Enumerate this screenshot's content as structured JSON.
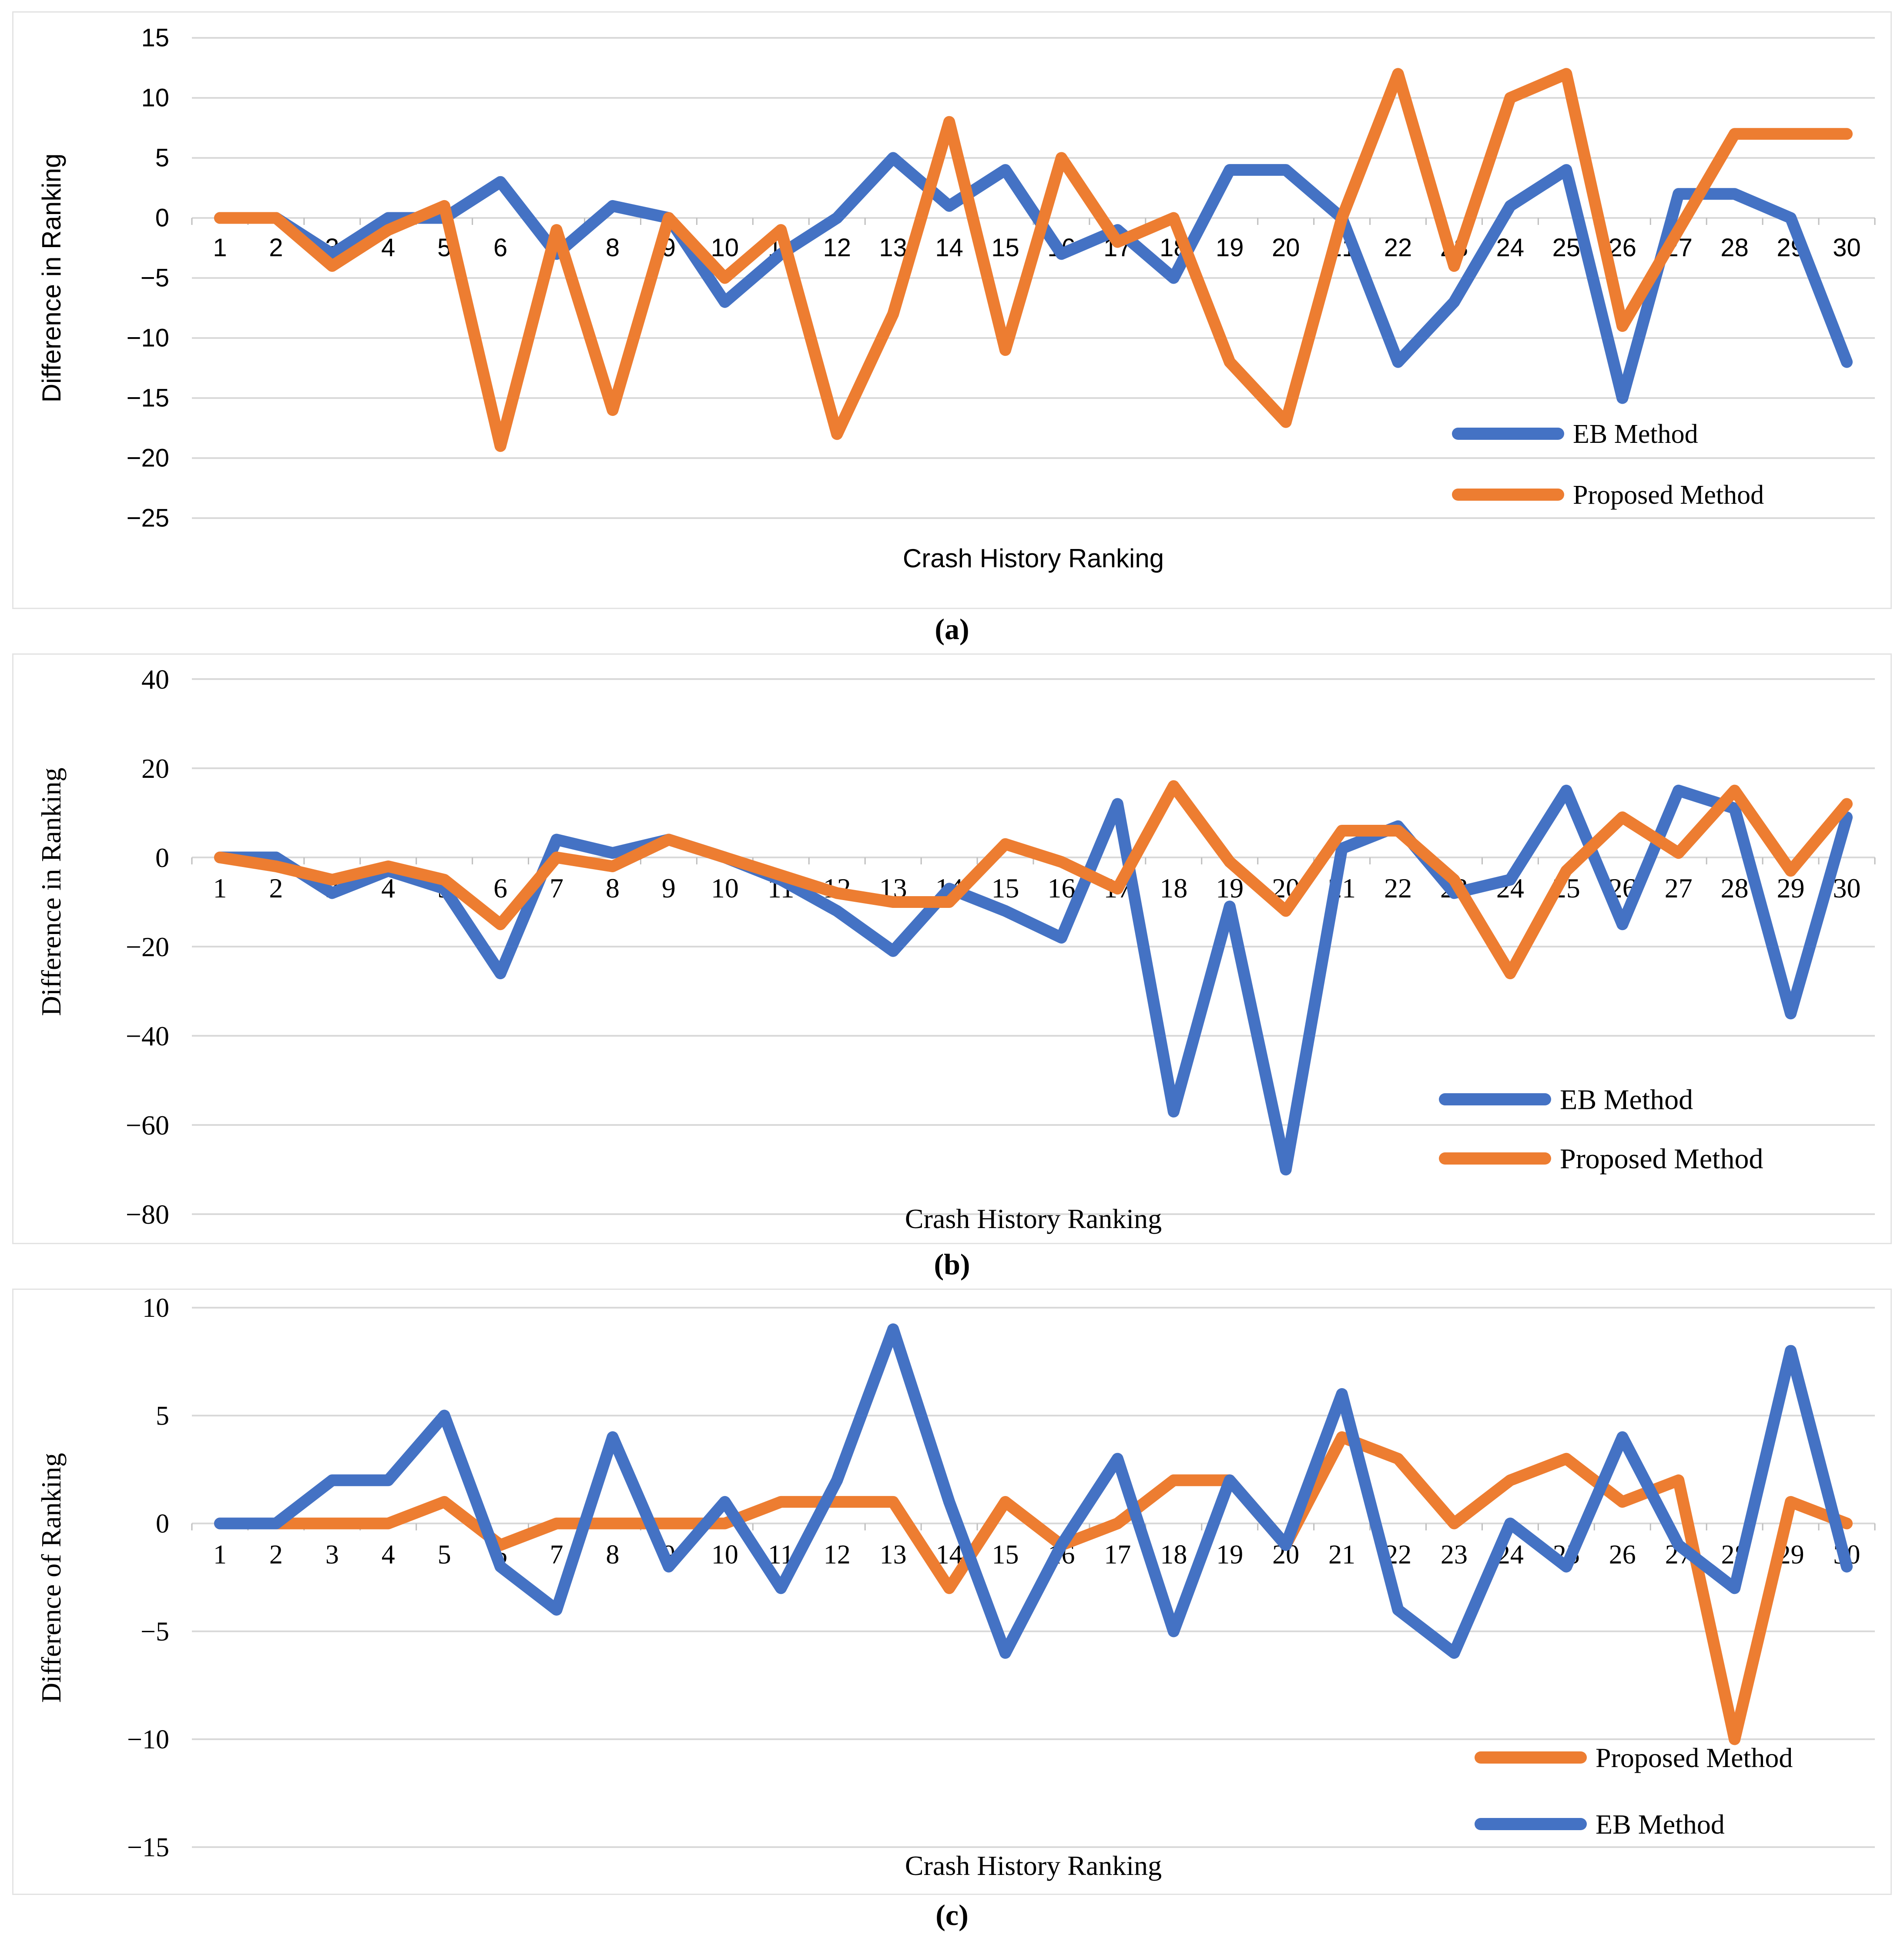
{
  "figure": {
    "panels": [
      {
        "label": "(a)"
      },
      {
        "label": "(b)"
      },
      {
        "label": "(c)"
      }
    ]
  },
  "colors": {
    "eb_blue": "#4472C4",
    "proposed_orange": "#ED7D31",
    "gridline": "#D9D9D9",
    "axis_tick": "#BFBFBF",
    "text": "#000000"
  },
  "chart_data": [
    {
      "id": "a",
      "type": "line",
      "xlabel": "Crash History Ranking",
      "ylabel": "Difference in Ranking",
      "x_categories": [
        1,
        2,
        3,
        4,
        5,
        6,
        7,
        8,
        9,
        10,
        11,
        12,
        13,
        14,
        15,
        16,
        17,
        18,
        19,
        20,
        21,
        22,
        23,
        24,
        25,
        26,
        27,
        28,
        29,
        30
      ],
      "y_ticks": [
        15,
        10,
        5,
        0,
        -5,
        -10,
        -15,
        -20,
        -25
      ],
      "y_tick_labels": [
        "15",
        "10",
        "5",
        "0",
        "−5",
        "−10",
        "−15",
        "−20",
        "−25"
      ],
      "ylim": [
        -25,
        15
      ],
      "grid": true,
      "legend_position": "inside-right-middle",
      "series": [
        {
          "name": "EB Method",
          "color": "#4472C4",
          "values": [
            0,
            0,
            -3,
            0,
            0,
            3,
            -3,
            1,
            0,
            -7,
            -3,
            0,
            5,
            1,
            4,
            -3,
            -1,
            -5,
            4,
            4,
            0,
            -12,
            -7,
            1,
            4,
            -15,
            2,
            2,
            0,
            -12
          ]
        },
        {
          "name": "Proposed Method",
          "color": "#ED7D31",
          "values": [
            0,
            0,
            -4,
            -1,
            1,
            -19,
            -1,
            -16,
            0,
            -5,
            -1,
            -18,
            -8,
            8,
            -11,
            5,
            -2,
            0,
            -12,
            -17,
            0,
            12,
            -4,
            10,
            12,
            -9,
            -1,
            7,
            7,
            7
          ]
        }
      ]
    },
    {
      "id": "b",
      "type": "line",
      "xlabel": "Crash History Ranking",
      "ylabel": "Difference in Ranking",
      "x_categories": [
        1,
        2,
        3,
        4,
        5,
        6,
        7,
        8,
        9,
        10,
        11,
        12,
        13,
        14,
        15,
        16,
        17,
        18,
        19,
        20,
        21,
        22,
        23,
        24,
        25,
        26,
        27,
        28,
        29,
        30
      ],
      "y_ticks": [
        40,
        20,
        0,
        -20,
        -40,
        -60,
        -80
      ],
      "y_tick_labels": [
        "40",
        "20",
        "0",
        "−20",
        "−40",
        "−60",
        "−80"
      ],
      "ylim": [
        -80,
        40
      ],
      "grid": true,
      "legend_position": "inside-right-lower",
      "series": [
        {
          "name": "EB Method",
          "color": "#4472C4",
          "values": [
            0,
            0,
            -8,
            -3,
            -7,
            -26,
            4,
            1,
            4,
            0,
            -5,
            -12,
            -21,
            -7,
            -12,
            -18,
            12,
            -57,
            -11,
            -70,
            2,
            7,
            -8,
            -5,
            15,
            -15,
            15,
            11,
            -35,
            9
          ]
        },
        {
          "name": "Proposed Method",
          "color": "#ED7D31",
          "values": [
            0,
            -2,
            -5,
            -2,
            -5,
            -15,
            0,
            -2,
            4,
            0,
            -4,
            -8,
            -10,
            -10,
            3,
            -1,
            -7,
            16,
            -1,
            -12,
            6,
            6,
            -5,
            -26,
            -3,
            9,
            1,
            15,
            -3,
            12
          ]
        }
      ]
    },
    {
      "id": "c",
      "type": "line",
      "xlabel": "Crash History Ranking",
      "ylabel": "Difference of Ranking",
      "x_categories": [
        1,
        2,
        3,
        4,
        5,
        6,
        7,
        8,
        9,
        10,
        11,
        12,
        13,
        14,
        15,
        16,
        17,
        18,
        19,
        20,
        21,
        22,
        23,
        24,
        25,
        26,
        27,
        28,
        29,
        30
      ],
      "y_ticks": [
        10,
        5,
        0,
        -5,
        -10,
        -15
      ],
      "y_tick_labels": [
        "10",
        "5",
        "0",
        "−5",
        "−10",
        "−15"
      ],
      "ylim": [
        -15,
        10
      ],
      "grid": true,
      "legend_position": "inside-right-lower",
      "series": [
        {
          "name": "Proposed Method",
          "color": "#ED7D31",
          "values": [
            0,
            0,
            0,
            0,
            1,
            -1,
            0,
            0,
            0,
            0,
            1,
            1,
            1,
            -3,
            1,
            -1,
            0,
            2,
            2,
            -1,
            4,
            3,
            0,
            2,
            3,
            1,
            2,
            -10,
            1,
            0
          ]
        },
        {
          "name": "EB Method",
          "color": "#4472C4",
          "values": [
            0,
            0,
            2,
            2,
            5,
            -2,
            -4,
            4,
            -2,
            1,
            -3,
            2,
            9,
            1,
            -6,
            -1,
            3,
            -5,
            2,
            -1,
            6,
            -4,
            -6,
            0,
            -2,
            4,
            -1,
            -3,
            8,
            -2
          ]
        }
      ]
    }
  ]
}
